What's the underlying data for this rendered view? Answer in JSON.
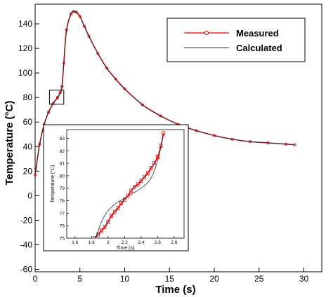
{
  "chart_data": [
    {
      "type": "line",
      "xlabel": "Time (s)",
      "ylabel": "Temperature (°C)",
      "xlim": [
        0,
        32
      ],
      "ylim": [
        -62,
        156
      ],
      "xticks": [
        0,
        5,
        10,
        15,
        20,
        25,
        30
      ],
      "yticks": [
        -60,
        -40,
        -20,
        0,
        20,
        40,
        60,
        80,
        100,
        120,
        140
      ],
      "legend": {
        "placement": "top-right",
        "entries": [
          "Measured",
          "Calculated"
        ]
      },
      "series": [
        {
          "name": "Measured",
          "color": "#dd0000",
          "marker": "circle",
          "x": [
            0,
            0.5,
            1.0,
            1.5,
            2.0,
            2.5,
            2.8,
            3.0,
            3.2,
            3.5,
            4.0,
            4.3,
            4.6,
            5.0,
            5.5,
            6,
            7,
            8,
            9,
            10,
            12,
            14,
            16,
            18,
            20,
            22,
            24,
            26,
            28,
            29
          ],
          "y": [
            17,
            42,
            58,
            68,
            75,
            80,
            84,
            89,
            108,
            135,
            148,
            150,
            149.5,
            146,
            138,
            130,
            116,
            104,
            95,
            87,
            74,
            65,
            58,
            53,
            49,
            46,
            44,
            43,
            42,
            41.5
          ]
        },
        {
          "name": "Calculated",
          "color": "#333333",
          "marker": "none",
          "x": [
            0,
            0.5,
            1.0,
            1.5,
            2.0,
            2.5,
            2.8,
            3.0,
            3.2,
            3.5,
            4.0,
            4.3,
            4.6,
            5.0,
            5.5,
            6,
            7,
            8,
            9,
            10,
            12,
            14,
            16,
            18,
            20,
            22,
            24,
            26,
            28,
            29
          ],
          "y": [
            17,
            41.5,
            57.5,
            68,
            75,
            79.5,
            83.5,
            88,
            107,
            134,
            148,
            150,
            149.5,
            146,
            138,
            130,
            116,
            104,
            95,
            87,
            74,
            65,
            58,
            53,
            49,
            46,
            44,
            43,
            42,
            41.5
          ]
        }
      ]
    },
    {
      "type": "line",
      "xlabel": "Time (s)",
      "ylabel": "Temperature (°C)",
      "xlim": [
        1.5,
        2.92
      ],
      "ylim": [
        75,
        83.7
      ],
      "xticks": [
        1.6,
        1.8,
        2,
        2.2,
        2.4,
        2.6,
        2.8
      ],
      "xticklabels": [
        "1.6",
        "1.8",
        "2",
        "2.2",
        "2.4",
        "2.6",
        "2.8"
      ],
      "yticks": [
        75,
        76,
        77,
        78,
        79,
        80,
        81,
        82,
        83
      ],
      "series": [
        {
          "name": "Measured",
          "color": "#dd0000",
          "marker": "square",
          "x": [
            1.84,
            1.88,
            1.92,
            1.96,
            2.0,
            2.04,
            2.08,
            2.12,
            2.16,
            2.2,
            2.24,
            2.28,
            2.32,
            2.36,
            2.4,
            2.44,
            2.48,
            2.52,
            2.56,
            2.6,
            2.64,
            2.67
          ],
          "y": [
            75.0,
            75.3,
            75.6,
            75.9,
            76.3,
            76.8,
            77.1,
            77.4,
            77.8,
            78.1,
            78.4,
            78.8,
            79.1,
            79.3,
            79.6,
            79.9,
            80.2,
            80.6,
            81.0,
            81.5,
            82.4,
            83.4
          ]
        },
        {
          "name": "Calculated",
          "color": "#333333",
          "marker": "none",
          "x": [
            1.85,
            1.88,
            1.92,
            1.96,
            2.0,
            2.06,
            2.12,
            2.2,
            2.3,
            2.4,
            2.5,
            2.56,
            2.6,
            2.64,
            2.67
          ],
          "y": [
            75.0,
            75.6,
            76.3,
            76.8,
            77.2,
            77.6,
            77.9,
            78.2,
            78.6,
            79.0,
            79.6,
            80.4,
            81.2,
            82.3,
            83.4
          ]
        }
      ]
    }
  ]
}
